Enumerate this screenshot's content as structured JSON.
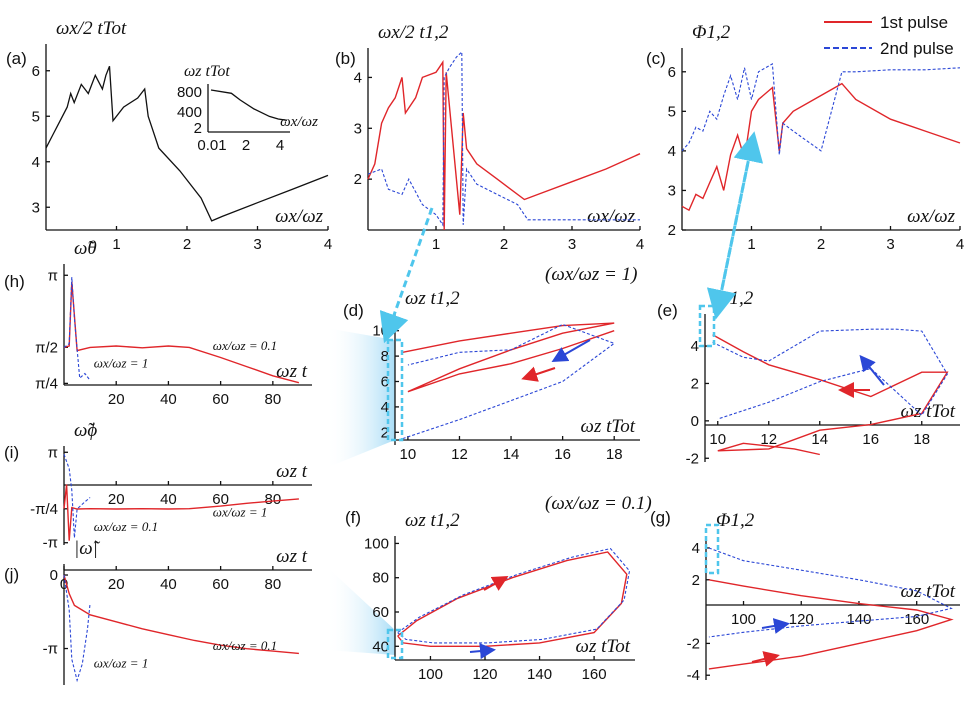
{
  "legend": {
    "pulse1": "1st pulse",
    "pulse2": "2nd pulse",
    "placement": "top-right",
    "pulse1_color": "#e0262a",
    "pulse2_color": "#2b47d6"
  },
  "labels": {
    "a": "(a)",
    "b": "(b)",
    "c": "(c)",
    "d": "(d)",
    "e": "(e)",
    "f": "(f)",
    "g": "(g)",
    "h": "(h)",
    "i": "(i)",
    "j": "(j)",
    "eq1": "(ωx/ωz = 1)",
    "eq01": "(ωx/ωz = 0.1)"
  },
  "chart_data": [
    {
      "panel": "a",
      "type": "line",
      "title": "ωx/2 tTot",
      "xlabel": "ωx/ωz",
      "xlim": [
        0,
        4
      ],
      "ylim": [
        2.5,
        6.5
      ],
      "xticks": [
        "1",
        "2",
        "3",
        "4"
      ],
      "yticks": [
        "3",
        "4",
        "5",
        "6"
      ],
      "series": [
        {
          "x": [
            0,
            0.1,
            0.2,
            0.3,
            0.35,
            0.4,
            0.5,
            0.6,
            0.7,
            0.8,
            0.85,
            0.9,
            0.95,
            1.1,
            1.3,
            1.4,
            1.45,
            1.6,
            1.9,
            2.2,
            2.35,
            2.5,
            3,
            3.5,
            4
          ],
          "y": [
            4.3,
            4.6,
            4.9,
            5.2,
            5.5,
            5.3,
            5.7,
            5.5,
            5.9,
            5.6,
            5.9,
            6.1,
            4.9,
            5.2,
            5.4,
            5.6,
            5.0,
            4.3,
            3.8,
            3.2,
            2.7,
            2.8,
            3.1,
            3.4,
            3.7
          ],
          "color": "#111"
        }
      ],
      "inset": {
        "ylabel": "ωz tTot",
        "xlabel": "ωx/ωz",
        "xticks": [
          "0.01",
          "2",
          "4"
        ],
        "yticks": [
          "800",
          "400",
          "2"
        ],
        "x": [
          0.01,
          0.05,
          0.1,
          0.3,
          1,
          2,
          4
        ],
        "y": [
          900,
          500,
          150,
          30,
          8,
          5,
          4
        ]
      }
    },
    {
      "panel": "b",
      "type": "line",
      "title": "ωx/2 t1,2",
      "xlabel": "ωx/ωz",
      "xlim": [
        0,
        4
      ],
      "ylim": [
        1,
        4.5
      ],
      "xticks": [
        "1",
        "2",
        "3",
        "4"
      ],
      "yticks": [
        "2",
        "3",
        "4"
      ],
      "series": [
        {
          "name": "1st pulse",
          "x": [
            0,
            0.1,
            0.2,
            0.3,
            0.4,
            0.5,
            0.55,
            0.7,
            0.8,
            1.0,
            1.05,
            1.1,
            1.12,
            1.15,
            1.35,
            1.4,
            1.45,
            1.6,
            1.9,
            2.3,
            2.5,
            3,
            3.5,
            4
          ],
          "y": [
            2.0,
            2.3,
            3.1,
            3.4,
            3.6,
            4.0,
            3.3,
            3.6,
            4.0,
            4.1,
            4.2,
            4.3,
            1.0,
            4.1,
            1.3,
            3.3,
            2.6,
            2.3,
            2.0,
            1.6,
            1.7,
            1.95,
            2.2,
            2.5
          ]
        },
        {
          "name": "2nd pulse",
          "x": [
            0,
            0.2,
            0.3,
            0.5,
            0.6,
            0.8,
            1.0,
            1.1,
            1.12,
            1.2,
            1.3,
            1.38,
            1.4,
            1.45,
            1.6,
            1.9,
            2.2,
            2.35,
            3,
            3.5,
            4
          ],
          "y": [
            2.1,
            2.2,
            1.8,
            1.7,
            2.0,
            1.5,
            1.3,
            1.1,
            4.0,
            4.2,
            4.4,
            4.5,
            1.1,
            2.2,
            1.9,
            1.7,
            1.5,
            1.2,
            1.2,
            1.2,
            1.2
          ]
        }
      ]
    },
    {
      "panel": "c",
      "type": "line",
      "title": "Φ1,2",
      "xlabel": "ωx/ωz",
      "xlim": [
        0,
        4
      ],
      "ylim": [
        2,
        6.5
      ],
      "xticks": [
        "1",
        "2",
        "3",
        "4"
      ],
      "yticks": [
        "2",
        "3",
        "4",
        "5",
        "6"
      ],
      "series": [
        {
          "name": "1st pulse",
          "x": [
            0,
            0.1,
            0.2,
            0.3,
            0.4,
            0.5,
            0.6,
            0.7,
            0.8,
            0.9,
            1.0,
            1.1,
            1.3,
            1.4,
            1.45,
            1.6,
            2.0,
            2.3,
            2.5,
            3,
            3.5,
            4
          ],
          "y": [
            2.6,
            2.5,
            2.9,
            2.8,
            3.2,
            3.6,
            3.0,
            3.9,
            4.4,
            3.8,
            5.0,
            5.3,
            5.6,
            4.0,
            4.7,
            5.0,
            5.4,
            5.7,
            5.3,
            4.8,
            4.5,
            4.2
          ]
        },
        {
          "name": "2nd pulse",
          "x": [
            0,
            0.1,
            0.2,
            0.3,
            0.4,
            0.5,
            0.6,
            0.7,
            0.8,
            0.9,
            1.0,
            1.1,
            1.3,
            1.4,
            1.45,
            1.6,
            2.0,
            2.3,
            2.5,
            3,
            3.5,
            4
          ],
          "y": [
            4.0,
            4.2,
            4.6,
            4.5,
            5.0,
            4.8,
            5.4,
            5.9,
            5.3,
            6.1,
            5.3,
            6.0,
            6.2,
            3.9,
            4.7,
            4.5,
            4.0,
            6.0,
            6.0,
            6.05,
            6.05,
            6.1
          ]
        }
      ]
    },
    {
      "panel": "d",
      "type": "line",
      "title": "ωz t1,2",
      "xlabel": "ωz tTot",
      "xlim": [
        9.5,
        19
      ],
      "ylim": [
        1,
        11
      ],
      "xticks": [
        "10",
        "12",
        "14",
        "16",
        "18"
      ],
      "yticks": [
        "2",
        "4",
        "6",
        "8",
        "10"
      ],
      "series": [
        {
          "name": "1st pulse",
          "x": [
            9.8,
            12,
            14,
            16,
            18,
            16,
            14,
            12,
            10,
            12,
            14,
            16,
            18
          ],
          "y": [
            8.3,
            9.2,
            9.8,
            10.4,
            10.6,
            9.8,
            8.5,
            7.0,
            5.2,
            6.6,
            7.4,
            8.6,
            10.0
          ]
        },
        {
          "name": "2nd pulse",
          "x": [
            9.8,
            12,
            14,
            16,
            18,
            16,
            14,
            12,
            10
          ],
          "y": [
            1.5,
            3.0,
            4.5,
            6.0,
            9.0,
            10.5,
            8.5,
            8.3,
            7.3
          ]
        }
      ]
    },
    {
      "panel": "e",
      "type": "line",
      "title": "Φ1,2",
      "xlabel": "ωz tTot",
      "xlim": [
        9.5,
        19.5
      ],
      "ylim": [
        -2.2,
        5.5
      ],
      "xticks": [
        "10",
        "12",
        "14",
        "16",
        "18"
      ],
      "yticks": [
        "-2",
        "0",
        "2",
        "4"
      ],
      "series": [
        {
          "name": "1st pulse",
          "x": [
            9.8,
            11,
            12,
            14,
            16,
            18,
            19,
            18,
            16,
            14,
            12,
            10,
            11,
            13,
            14
          ],
          "y": [
            4.6,
            3.7,
            3.0,
            2.2,
            1.3,
            2.6,
            2.6,
            0.4,
            -0.2,
            -0.5,
            -1.5,
            -1.6,
            -1.2,
            -1.5,
            -1.8
          ]
        },
        {
          "name": "2nd pulse",
          "x": [
            9.8,
            11,
            12,
            14,
            16,
            17,
            18,
            19,
            18,
            16,
            14,
            12,
            10
          ],
          "y": [
            4.2,
            3.4,
            3.2,
            4.8,
            4.9,
            4.9,
            4.8,
            2.5,
            0.3,
            2.8,
            2.1,
            1.0,
            0.1
          ]
        }
      ]
    },
    {
      "panel": "f",
      "type": "line",
      "title": "ωz t1,2",
      "xlabel": "ωz tTot",
      "xlim": [
        87,
        175
      ],
      "ylim": [
        32,
        102
      ],
      "xticks": [
        "100",
        "120",
        "140",
        "160"
      ],
      "yticks": [
        "40",
        "60",
        "80",
        "100"
      ],
      "series": [
        {
          "name": "1st pulse",
          "x": [
            88,
            95,
            110,
            130,
            150,
            165,
            172,
            170,
            160,
            140,
            120,
            100,
            90,
            88
          ],
          "y": [
            46,
            55,
            68,
            80,
            90,
            95,
            82,
            65,
            48,
            42,
            40,
            40,
            42,
            46
          ]
        },
        {
          "name": "2nd pulse",
          "x": [
            88,
            96,
            112,
            132,
            152,
            166,
            173,
            171,
            161,
            141,
            121,
            101,
            91,
            88
          ],
          "y": [
            48,
            57,
            70,
            82,
            92,
            97,
            84,
            67,
            50,
            44,
            42,
            42,
            44,
            48
          ]
        }
      ]
    },
    {
      "panel": "g",
      "type": "line",
      "title": "Φ1,2",
      "xlabel": "ωz tTot",
      "xlim": [
        87,
        175
      ],
      "ylim": [
        -4.3,
        4.5
      ],
      "xticks": [
        "100",
        "120",
        "140",
        "160"
      ],
      "yticks": [
        "-4",
        "-2",
        "2",
        "4"
      ],
      "series": [
        {
          "name": "1st pulse",
          "x": [
            88,
            100,
            120,
            140,
            160,
            172,
            160,
            140,
            120,
            100,
            88
          ],
          "y": [
            2.0,
            1.6,
            1.0,
            0.5,
            0.1,
            -0.5,
            -1.2,
            -2.0,
            -2.8,
            -3.3,
            -3.6
          ]
        },
        {
          "name": "2nd pulse",
          "x": [
            88,
            100,
            120,
            140,
            160,
            172,
            160,
            140,
            120,
            100,
            88
          ],
          "y": [
            4.0,
            3.2,
            2.6,
            2.0,
            1.3,
            0.2,
            -0.3,
            -0.6,
            -0.9,
            -1.3,
            -1.6
          ]
        }
      ]
    },
    {
      "panel": "h",
      "type": "line",
      "title": "ω̃θ",
      "xlabel": "ωz t",
      "xlim": [
        0,
        95
      ],
      "ylim": [
        0.75,
        3.3
      ],
      "xticks": [
        "20",
        "40",
        "60",
        "80"
      ],
      "yticks": [
        "π",
        "π/2",
        "π/4"
      ],
      "annotations": [
        "ωx/ωz = 0.1",
        "ωx/ωz = 1"
      ],
      "series": [
        {
          "name": "ωx/ωz = 0.1",
          "x": [
            0,
            2,
            3,
            5,
            10,
            20,
            30,
            40,
            48,
            60,
            70,
            80,
            90
          ],
          "y": [
            1.57,
            1.6,
            3.0,
            1.5,
            1.57,
            1.6,
            1.56,
            1.6,
            1.57,
            1.35,
            1.15,
            0.95,
            0.8
          ]
        },
        {
          "name": "ωx/ωz = 1",
          "x": [
            0,
            2,
            3,
            4,
            6,
            8,
            10
          ],
          "y": [
            1.57,
            1.65,
            3.1,
            2.2,
            0.9,
            1.0,
            0.85
          ]
        }
      ]
    },
    {
      "panel": "i",
      "type": "line",
      "title": "ω̃ϕ",
      "xlabel": "ωz t",
      "xlim": [
        0,
        95
      ],
      "ylim": [
        -3.3,
        3.3
      ],
      "xticks": [
        "20",
        "40",
        "60",
        "80"
      ],
      "yticks": [
        "π",
        "-π/4",
        "-π"
      ],
      "annotations": [
        "ωx/ωz = 1",
        "ωx/ωz = 0.1"
      ],
      "series": [
        {
          "name": "ωx/ωz = 0.1",
          "x": [
            0,
            1,
            2,
            3,
            5,
            10,
            20,
            30,
            40,
            48,
            60,
            70,
            80,
            90
          ],
          "y": [
            -0.78,
            0.9,
            -3.0,
            -0.7,
            -0.8,
            -0.78,
            -0.8,
            -0.78,
            -0.8,
            -0.78,
            -0.6,
            -0.4,
            -0.25,
            -0.1
          ]
        },
        {
          "name": "ωx/ωz = 1",
          "x": [
            0,
            2,
            3,
            4,
            5,
            8,
            10
          ],
          "y": [
            3.0,
            2.0,
            0.5,
            -2.8,
            -0.8,
            -0.3,
            0.0
          ]
        }
      ]
    },
    {
      "panel": "j",
      "type": "line",
      "title": "|ω̃|",
      "xlabel": "ωz t",
      "xlim": [
        0,
        95
      ],
      "ylim": [
        -4.7,
        0.3
      ],
      "xticks": [
        "0",
        "20",
        "40",
        "60",
        "80"
      ],
      "yticks": [
        "0",
        "-π"
      ],
      "annotations": [
        "ωx/ωz = 0.1",
        "ωx/ωz = 1"
      ],
      "series": [
        {
          "name": "ωx/ωz = 0.1",
          "x": [
            0,
            2,
            4,
            10,
            20,
            30,
            40,
            50,
            60,
            70,
            80,
            90
          ],
          "y": [
            0,
            -0.8,
            -1.3,
            -1.7,
            -2.0,
            -2.3,
            -2.55,
            -2.8,
            -3.0,
            -3.15,
            -3.25,
            -3.35
          ]
        },
        {
          "name": "ωx/ωz = 1",
          "x": [
            0,
            2,
            3,
            5,
            7,
            9,
            10
          ],
          "y": [
            0,
            -1.5,
            -3.6,
            -4.5,
            -3.8,
            -2.3,
            -1.2
          ]
        }
      ]
    }
  ]
}
